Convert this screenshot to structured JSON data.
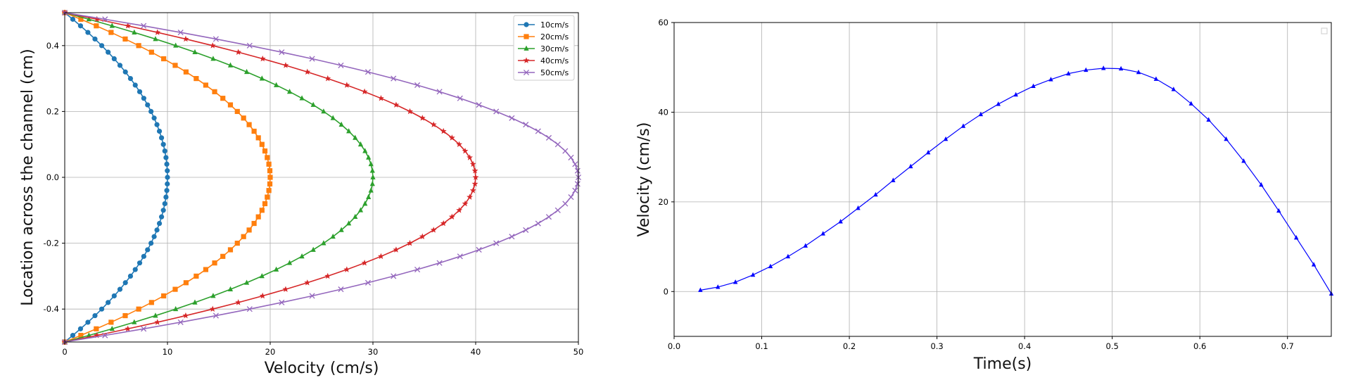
{
  "chart_data": [
    {
      "type": "line",
      "title": "",
      "xlabel": "Velocity (cm/s)",
      "ylabel": "Location across the channel (cm)",
      "xlim": [
        0,
        50
      ],
      "ylim": [
        -0.5,
        0.5
      ],
      "xticks": [
        "0",
        "10",
        "20",
        "30",
        "40",
        "50"
      ],
      "yticks": [
        "-0.4",
        "-0.2",
        "0.0",
        "0.2",
        "0.4"
      ],
      "grid": true,
      "legend": "top-right",
      "profile": {
        "y_from": -0.5,
        "y_to": 0.5,
        "points": 51,
        "formula": "v = vmax * (1 - (2y)^2)"
      },
      "series": [
        {
          "name": "10cm/s",
          "vmax": 10,
          "color": "#1f77b4",
          "marker": "circle"
        },
        {
          "name": "20cm/s",
          "vmax": 20,
          "color": "#ff7f0e",
          "marker": "square"
        },
        {
          "name": "30cm/s",
          "vmax": 30,
          "color": "#2ca02c",
          "marker": "triangle"
        },
        {
          "name": "40cm/s",
          "vmax": 40,
          "color": "#d62728",
          "marker": "star"
        },
        {
          "name": "50cm/s",
          "vmax": 50,
          "color": "#9467bd",
          "marker": "x"
        }
      ]
    },
    {
      "type": "line",
      "title": "",
      "xlabel": "Time(s)",
      "ylabel": "Velocity (cm/s)",
      "xlim": [
        0.0,
        0.75
      ],
      "ylim": [
        -10,
        60
      ],
      "xticks": [
        "0.0",
        "0.1",
        "0.2",
        "0.3",
        "0.4",
        "0.5",
        "0.6",
        "0.7"
      ],
      "yticks": [
        "0",
        "20",
        "40",
        "60"
      ],
      "grid": true,
      "legend": "top-right (empty)",
      "series": [
        {
          "color": "#0000ff",
          "marker": "triangle",
          "x": [
            0.03,
            0.05,
            0.07,
            0.09,
            0.11,
            0.13,
            0.15,
            0.17,
            0.19,
            0.21,
            0.23,
            0.25,
            0.27,
            0.29,
            0.31,
            0.33,
            0.35,
            0.37,
            0.39,
            0.41,
            0.43,
            0.45,
            0.47,
            0.49,
            0.51,
            0.53,
            0.55,
            0.57,
            0.59,
            0.61,
            0.63,
            0.65,
            0.67,
            0.69,
            0.71,
            0.73,
            0.75
          ],
          "y": [
            0.3,
            1.0,
            2.1,
            3.7,
            5.6,
            7.8,
            10.2,
            12.9,
            15.6,
            18.6,
            21.6,
            24.8,
            27.9,
            31.0,
            34.0,
            36.9,
            39.5,
            41.8,
            43.9,
            45.8,
            47.3,
            48.6,
            49.4,
            49.8,
            49.7,
            48.9,
            47.4,
            45.1,
            41.9,
            38.3,
            34.0,
            29.1,
            23.8,
            18.0,
            12.0,
            6.0,
            -0.5
          ]
        }
      ]
    }
  ]
}
